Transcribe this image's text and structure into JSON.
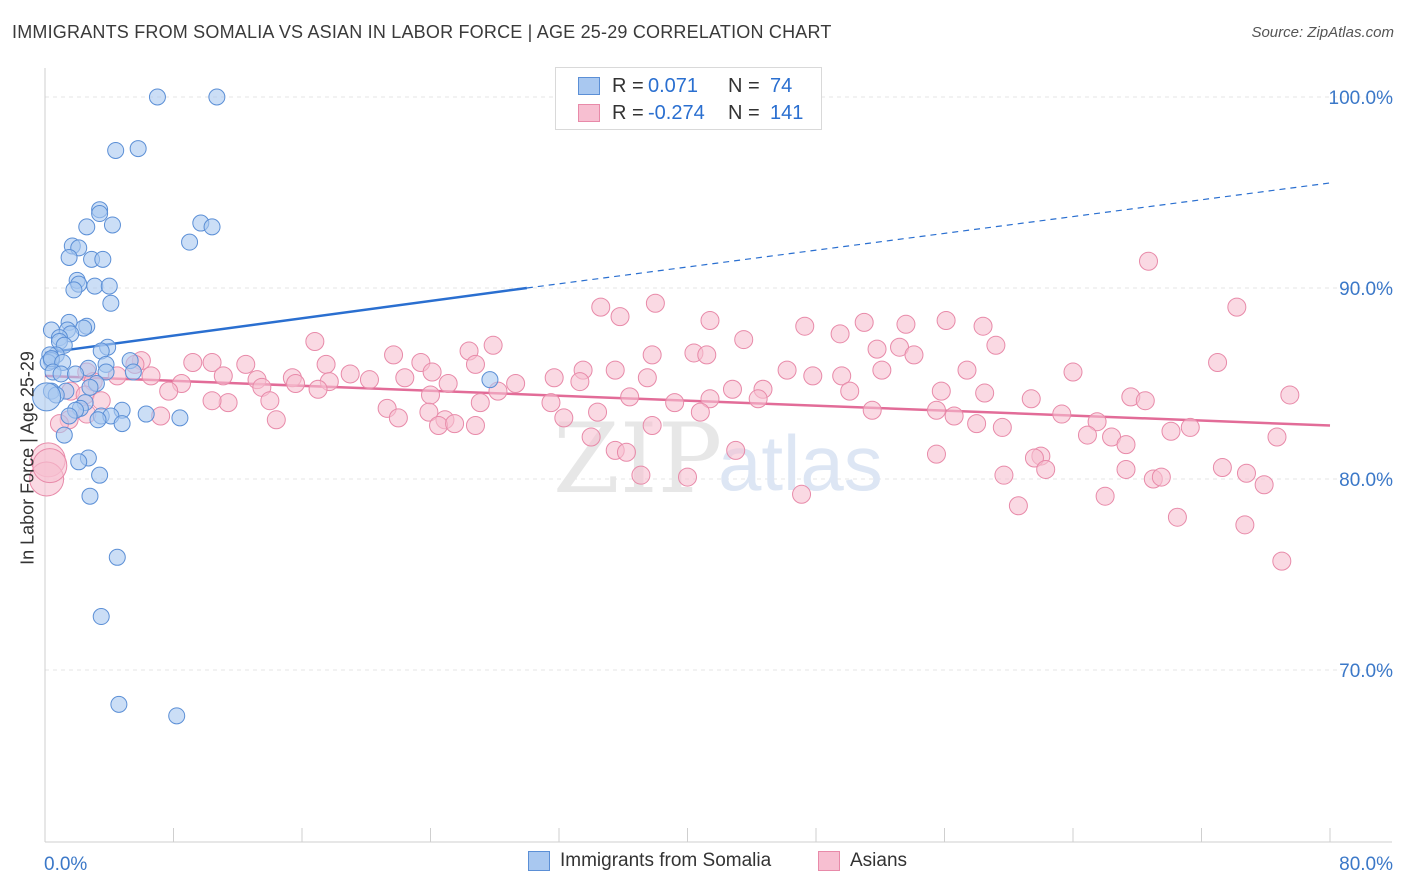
{
  "header": {
    "title": "IMMIGRANTS FROM SOMALIA VS ASIAN IN LABOR FORCE | AGE 25-29 CORRELATION CHART",
    "source": "Source: ZipAtlas.com"
  },
  "legend": {
    "r_label": "R =",
    "n_label": "N =",
    "rows": [
      {
        "r": "0.071",
        "n": "74"
      },
      {
        "r": "-0.274",
        "n": "141"
      }
    ]
  },
  "watermark": {
    "zip": "ZIP",
    "atlas": "atlas"
  },
  "colors": {
    "somalia_fill": "#a9c8f0",
    "somalia_stroke": "#5b8fd6",
    "somalia_line": "#2a6fd0",
    "asians_fill": "#f7bfd1",
    "asians_stroke": "#e88aa9",
    "asians_line": "#e26c98",
    "axis_text": "#3b78c8"
  },
  "chart_data": {
    "type": "scatter",
    "title": "IMMIGRANTS FROM SOMALIA VS ASIAN IN LABOR FORCE | AGE 25-29 CORRELATION CHART",
    "xlabel": "",
    "ylabel": "In Labor Force | Age 25-29",
    "xlim": [
      0,
      80
    ],
    "ylim": [
      60,
      102
    ],
    "x_tick_labels": [
      "0.0%",
      "80.0%"
    ],
    "y_ticks": [
      70,
      80,
      90,
      100
    ],
    "y_tick_labels": [
      "70.0%",
      "80.0%",
      "90.0%",
      "100.0%"
    ],
    "grid": true,
    "legend_position": "top-center",
    "series": [
      {
        "name": "Immigrants from Somalia",
        "r": 0.071,
        "n": 74,
        "trend": {
          "x0": 0,
          "y0": 86.6,
          "x1": 30,
          "y1": 90.0,
          "dashed_to_x": 80,
          "dashed_to_y": 95.5
        },
        "points": [
          [
            7.0,
            100.0
          ],
          [
            10.7,
            100.0
          ],
          [
            4.4,
            97.2
          ],
          [
            5.8,
            97.3
          ],
          [
            3.4,
            94.1
          ],
          [
            3.4,
            93.9
          ],
          [
            2.6,
            93.2
          ],
          [
            4.2,
            93.3
          ],
          [
            9.7,
            93.4
          ],
          [
            10.4,
            93.2
          ],
          [
            9.0,
            92.4
          ],
          [
            1.7,
            92.2
          ],
          [
            2.1,
            92.1
          ],
          [
            1.5,
            91.6
          ],
          [
            2.9,
            91.5
          ],
          [
            3.6,
            91.5
          ],
          [
            2.0,
            90.4
          ],
          [
            2.1,
            90.2
          ],
          [
            3.1,
            90.1
          ],
          [
            4.0,
            90.1
          ],
          [
            1.8,
            89.9
          ],
          [
            4.1,
            89.2
          ],
          [
            1.5,
            88.2
          ],
          [
            2.6,
            88.0
          ],
          [
            0.4,
            87.8
          ],
          [
            1.4,
            87.8
          ],
          [
            2.4,
            87.9
          ],
          [
            1.6,
            87.6
          ],
          [
            0.9,
            87.4
          ],
          [
            0.9,
            87.2
          ],
          [
            1.2,
            87.0
          ],
          [
            3.9,
            86.9
          ],
          [
            0.7,
            86.5
          ],
          [
            0.3,
            86.5
          ],
          [
            0.4,
            86.2
          ],
          [
            0.2,
            86.1
          ],
          [
            0.4,
            86.3
          ],
          [
            3.5,
            86.7
          ],
          [
            1.1,
            86.1
          ],
          [
            3.8,
            86.0
          ],
          [
            5.3,
            86.2
          ],
          [
            0.5,
            85.6
          ],
          [
            2.7,
            85.8
          ],
          [
            1.0,
            85.5
          ],
          [
            1.9,
            85.5
          ],
          [
            5.5,
            85.6
          ],
          [
            3.8,
            85.6
          ],
          [
            27.7,
            85.2
          ],
          [
            3.2,
            85.0
          ],
          [
            2.8,
            84.8
          ],
          [
            0.4,
            84.6
          ],
          [
            1.3,
            84.6
          ],
          [
            0.7,
            84.4
          ],
          [
            0.1,
            84.3
          ],
          [
            2.5,
            84.0
          ],
          [
            2.2,
            83.7
          ],
          [
            1.9,
            83.6
          ],
          [
            4.8,
            83.6
          ],
          [
            1.5,
            83.3
          ],
          [
            3.5,
            83.3
          ],
          [
            4.1,
            83.3
          ],
          [
            6.3,
            83.4
          ],
          [
            8.4,
            83.2
          ],
          [
            3.3,
            83.1
          ],
          [
            4.8,
            82.9
          ],
          [
            1.2,
            82.3
          ],
          [
            2.7,
            81.1
          ],
          [
            2.1,
            80.9
          ],
          [
            3.4,
            80.2
          ],
          [
            2.8,
            79.1
          ],
          [
            4.5,
            75.9
          ],
          [
            3.5,
            72.8
          ],
          [
            4.6,
            68.2
          ],
          [
            8.2,
            67.6
          ]
        ]
      },
      {
        "name": "Asians",
        "r": -0.274,
        "n": 141,
        "trend": {
          "x0": 0,
          "y0": 85.4,
          "x1": 80,
          "y1": 82.8
        },
        "points": [
          [
            68.7,
            91.4
          ],
          [
            74.2,
            89.0
          ],
          [
            34.6,
            89.0
          ],
          [
            38.0,
            89.2
          ],
          [
            35.8,
            88.5
          ],
          [
            41.4,
            88.3
          ],
          [
            51.0,
            88.2
          ],
          [
            56.1,
            88.3
          ],
          [
            47.3,
            88.0
          ],
          [
            53.6,
            88.1
          ],
          [
            58.4,
            88.0
          ],
          [
            49.5,
            87.6
          ],
          [
            43.5,
            87.3
          ],
          [
            16.8,
            87.2
          ],
          [
            27.9,
            87.0
          ],
          [
            59.2,
            87.0
          ],
          [
            53.2,
            86.9
          ],
          [
            26.4,
            86.7
          ],
          [
            37.8,
            86.5
          ],
          [
            40.4,
            86.6
          ],
          [
            41.2,
            86.5
          ],
          [
            51.8,
            86.8
          ],
          [
            54.1,
            86.5
          ],
          [
            21.7,
            86.5
          ],
          [
            6.0,
            86.2
          ],
          [
            9.2,
            86.1
          ],
          [
            17.5,
            86.0
          ],
          [
            5.6,
            86.0
          ],
          [
            10.4,
            86.1
          ],
          [
            12.5,
            86.0
          ],
          [
            23.4,
            86.1
          ],
          [
            26.8,
            86.0
          ],
          [
            35.5,
            85.7
          ],
          [
            33.5,
            85.7
          ],
          [
            46.2,
            85.7
          ],
          [
            52.1,
            85.7
          ],
          [
            57.4,
            85.7
          ],
          [
            64.0,
            85.6
          ],
          [
            73.0,
            86.1
          ],
          [
            2.6,
            85.6
          ],
          [
            4.5,
            85.4
          ],
          [
            6.6,
            85.4
          ],
          [
            11.1,
            85.4
          ],
          [
            13.2,
            85.2
          ],
          [
            15.4,
            85.3
          ],
          [
            19.0,
            85.5
          ],
          [
            20.2,
            85.2
          ],
          [
            22.4,
            85.3
          ],
          [
            24.1,
            85.6
          ],
          [
            37.5,
            85.3
          ],
          [
            31.7,
            85.3
          ],
          [
            47.8,
            85.4
          ],
          [
            49.6,
            85.4
          ],
          [
            3.0,
            85.1
          ],
          [
            8.5,
            85.0
          ],
          [
            15.6,
            85.0
          ],
          [
            17.7,
            85.1
          ],
          [
            25.1,
            85.0
          ],
          [
            29.3,
            85.0
          ],
          [
            33.3,
            85.1
          ],
          [
            44.7,
            84.7
          ],
          [
            42.8,
            84.7
          ],
          [
            50.1,
            84.6
          ],
          [
            55.8,
            84.6
          ],
          [
            58.5,
            84.5
          ],
          [
            67.6,
            84.3
          ],
          [
            77.5,
            84.4
          ],
          [
            1.6,
            84.6
          ],
          [
            2.5,
            84.4
          ],
          [
            7.7,
            84.6
          ],
          [
            13.5,
            84.8
          ],
          [
            17.0,
            84.7
          ],
          [
            24.0,
            84.4
          ],
          [
            28.2,
            84.6
          ],
          [
            36.4,
            84.3
          ],
          [
            41.4,
            84.2
          ],
          [
            44.4,
            84.2
          ],
          [
            31.5,
            84.0
          ],
          [
            39.2,
            84.0
          ],
          [
            61.4,
            84.2
          ],
          [
            68.5,
            84.1
          ],
          [
            3.5,
            84.1
          ],
          [
            11.4,
            84.0
          ],
          [
            14.0,
            84.1
          ],
          [
            27.1,
            84.0
          ],
          [
            21.3,
            83.7
          ],
          [
            23.9,
            83.5
          ],
          [
            34.4,
            83.5
          ],
          [
            40.8,
            83.5
          ],
          [
            51.5,
            83.6
          ],
          [
            55.5,
            83.6
          ],
          [
            63.3,
            83.4
          ],
          [
            2.6,
            83.4
          ],
          [
            1.5,
            83.1
          ],
          [
            7.2,
            83.3
          ],
          [
            14.4,
            83.1
          ],
          [
            22.0,
            83.2
          ],
          [
            24.9,
            83.1
          ],
          [
            32.3,
            83.2
          ],
          [
            56.6,
            83.3
          ],
          [
            58.0,
            82.9
          ],
          [
            65.5,
            83.0
          ],
          [
            71.3,
            82.7
          ],
          [
            0.9,
            82.9
          ],
          [
            24.5,
            82.8
          ],
          [
            25.5,
            82.9
          ],
          [
            26.8,
            82.8
          ],
          [
            37.8,
            82.8
          ],
          [
            59.6,
            82.7
          ],
          [
            70.1,
            82.5
          ],
          [
            34.0,
            82.2
          ],
          [
            64.9,
            82.3
          ],
          [
            66.4,
            82.2
          ],
          [
            67.3,
            81.8
          ],
          [
            76.7,
            82.2
          ],
          [
            35.5,
            81.5
          ],
          [
            36.2,
            81.4
          ],
          [
            55.5,
            81.3
          ],
          [
            43.0,
            81.5
          ],
          [
            62.0,
            81.2
          ],
          [
            37.1,
            80.2
          ],
          [
            40.0,
            80.1
          ],
          [
            61.6,
            81.1
          ],
          [
            73.3,
            80.6
          ],
          [
            62.3,
            80.5
          ],
          [
            67.3,
            80.5
          ],
          [
            59.7,
            80.2
          ],
          [
            69.0,
            80.0
          ],
          [
            69.5,
            80.1
          ],
          [
            74.8,
            80.3
          ],
          [
            75.9,
            79.7
          ],
          [
            47.1,
            79.2
          ],
          [
            66.0,
            79.1
          ],
          [
            60.6,
            78.6
          ],
          [
            70.5,
            78.0
          ],
          [
            74.7,
            77.6
          ],
          [
            77.0,
            75.7
          ],
          [
            0.2,
            81.0
          ],
          [
            0.1,
            80.0
          ],
          [
            0.3,
            80.7
          ],
          [
            10.4,
            84.1
          ]
        ]
      }
    ]
  },
  "bottom_legend": {
    "somalia": "Immigrants from Somalia",
    "asians": "Asians"
  }
}
